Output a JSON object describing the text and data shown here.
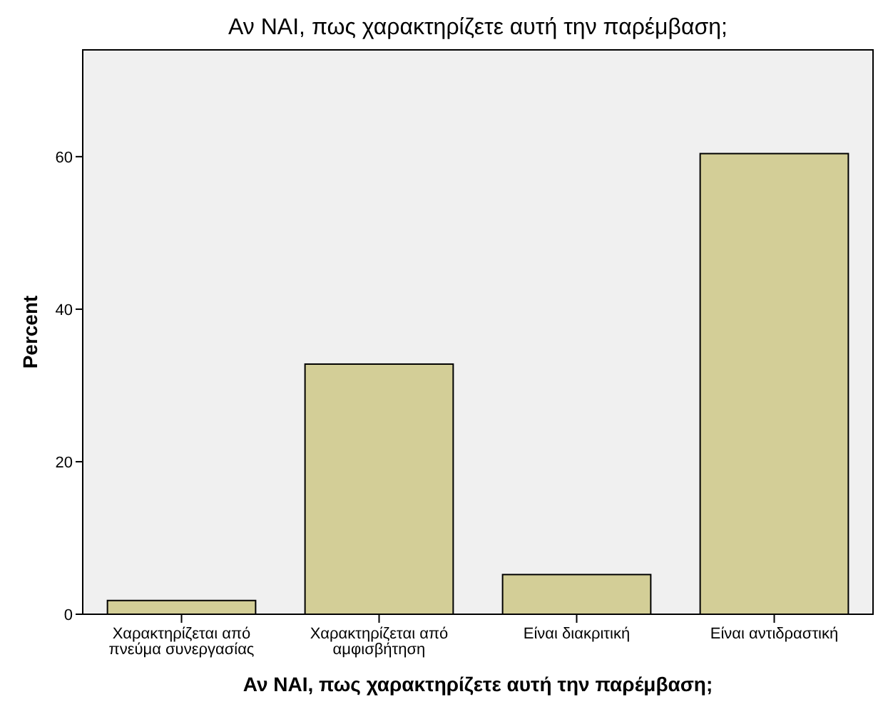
{
  "chart_data": {
    "type": "bar",
    "title": "Αν ΝΑΙ, πως χαρακτηρίζετε αυτή την παρέμβαση;",
    "xlabel": "Αν ΝΑΙ, πως χαρακτηρίζετε αυτή την παρέμβαση;",
    "ylabel": "Percent",
    "categories": [
      "Χαρακτηρίζεται από πνεύμα συνεργασίας",
      "Χαρακτηρίζεται από αμφισβήτηση",
      "Είναι διακριτική",
      "Είναι αντιδραστική"
    ],
    "values": [
      1.8,
      32.8,
      5.2,
      60.4
    ],
    "color": "#d3ce97",
    "ylim": [
      0,
      74
    ],
    "yticks": [
      0,
      20,
      40,
      60
    ],
    "grid": false
  }
}
